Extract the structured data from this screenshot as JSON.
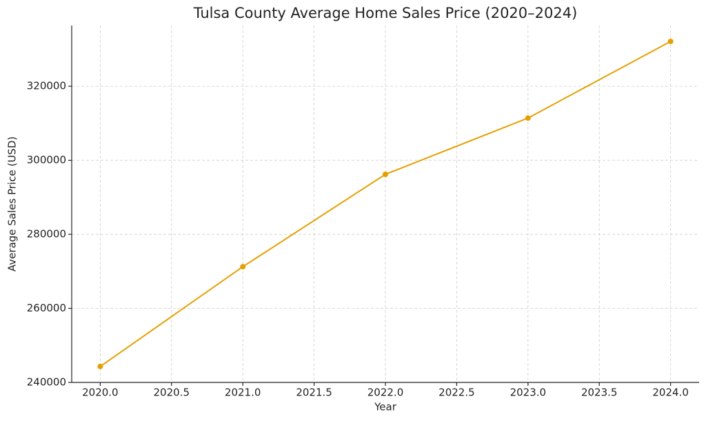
{
  "chart_data": {
    "type": "line",
    "title": "Tulsa County Average Home Sales Price (2020–2024)",
    "x_label": "Year",
    "y_label": "Average Sales Price (USD)",
    "x": [
      2020,
      2021,
      2022,
      2023,
      2024
    ],
    "series": [
      {
        "color": "#e69f00",
        "values": [
          244300,
          271250,
          296200,
          311400,
          332100
        ]
      }
    ],
    "xlim": [
      2019.8,
      2024.2
    ],
    "xticks": [
      {
        "value": 2020,
        "label": "2020.0"
      },
      {
        "value": 2020.5,
        "label": "2020.5"
      },
      {
        "value": 2021,
        "label": "2021.0"
      },
      {
        "value": 2021.5,
        "label": "2021.5"
      },
      {
        "value": 2022,
        "label": "2022.0"
      },
      {
        "value": 2022.5,
        "label": "2022.5"
      },
      {
        "value": 2023,
        "label": "2023.0"
      },
      {
        "value": 2023.5,
        "label": "2023.5"
      },
      {
        "value": 2024,
        "label": "2024.0"
      }
    ],
    "ylim": [
      240000,
      336400
    ],
    "yticks": [
      240000,
      260000,
      280000,
      300000,
      320000
    ],
    "grid": true
  }
}
